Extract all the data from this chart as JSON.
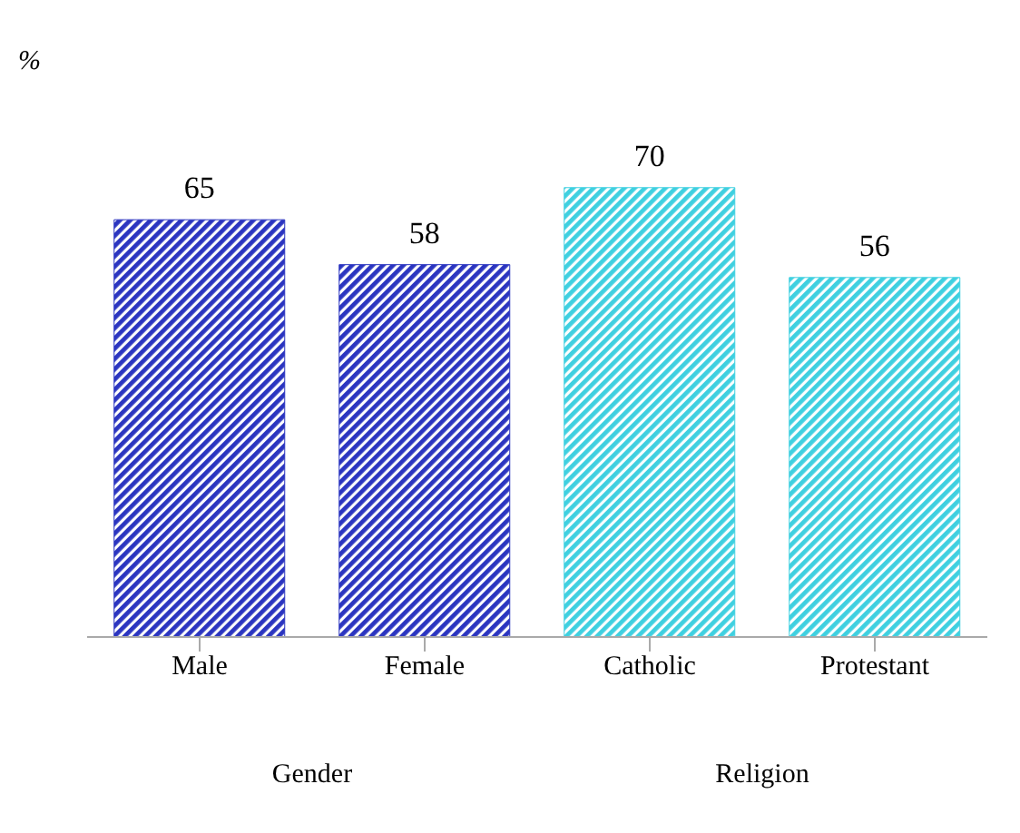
{
  "chart_data": {
    "type": "bar",
    "ylabel": "%",
    "categories": [
      "Male",
      "Female",
      "Catholic",
      "Protestant"
    ],
    "values": [
      65,
      58,
      70,
      56
    ],
    "colors": [
      "#2b35c0",
      "#2b35c0",
      "#3fd0e0",
      "#3fd0e0"
    ],
    "data_labels": true,
    "tick_labels": "x",
    "annotations": [
      "Gender",
      "Religion"
    ]
  }
}
